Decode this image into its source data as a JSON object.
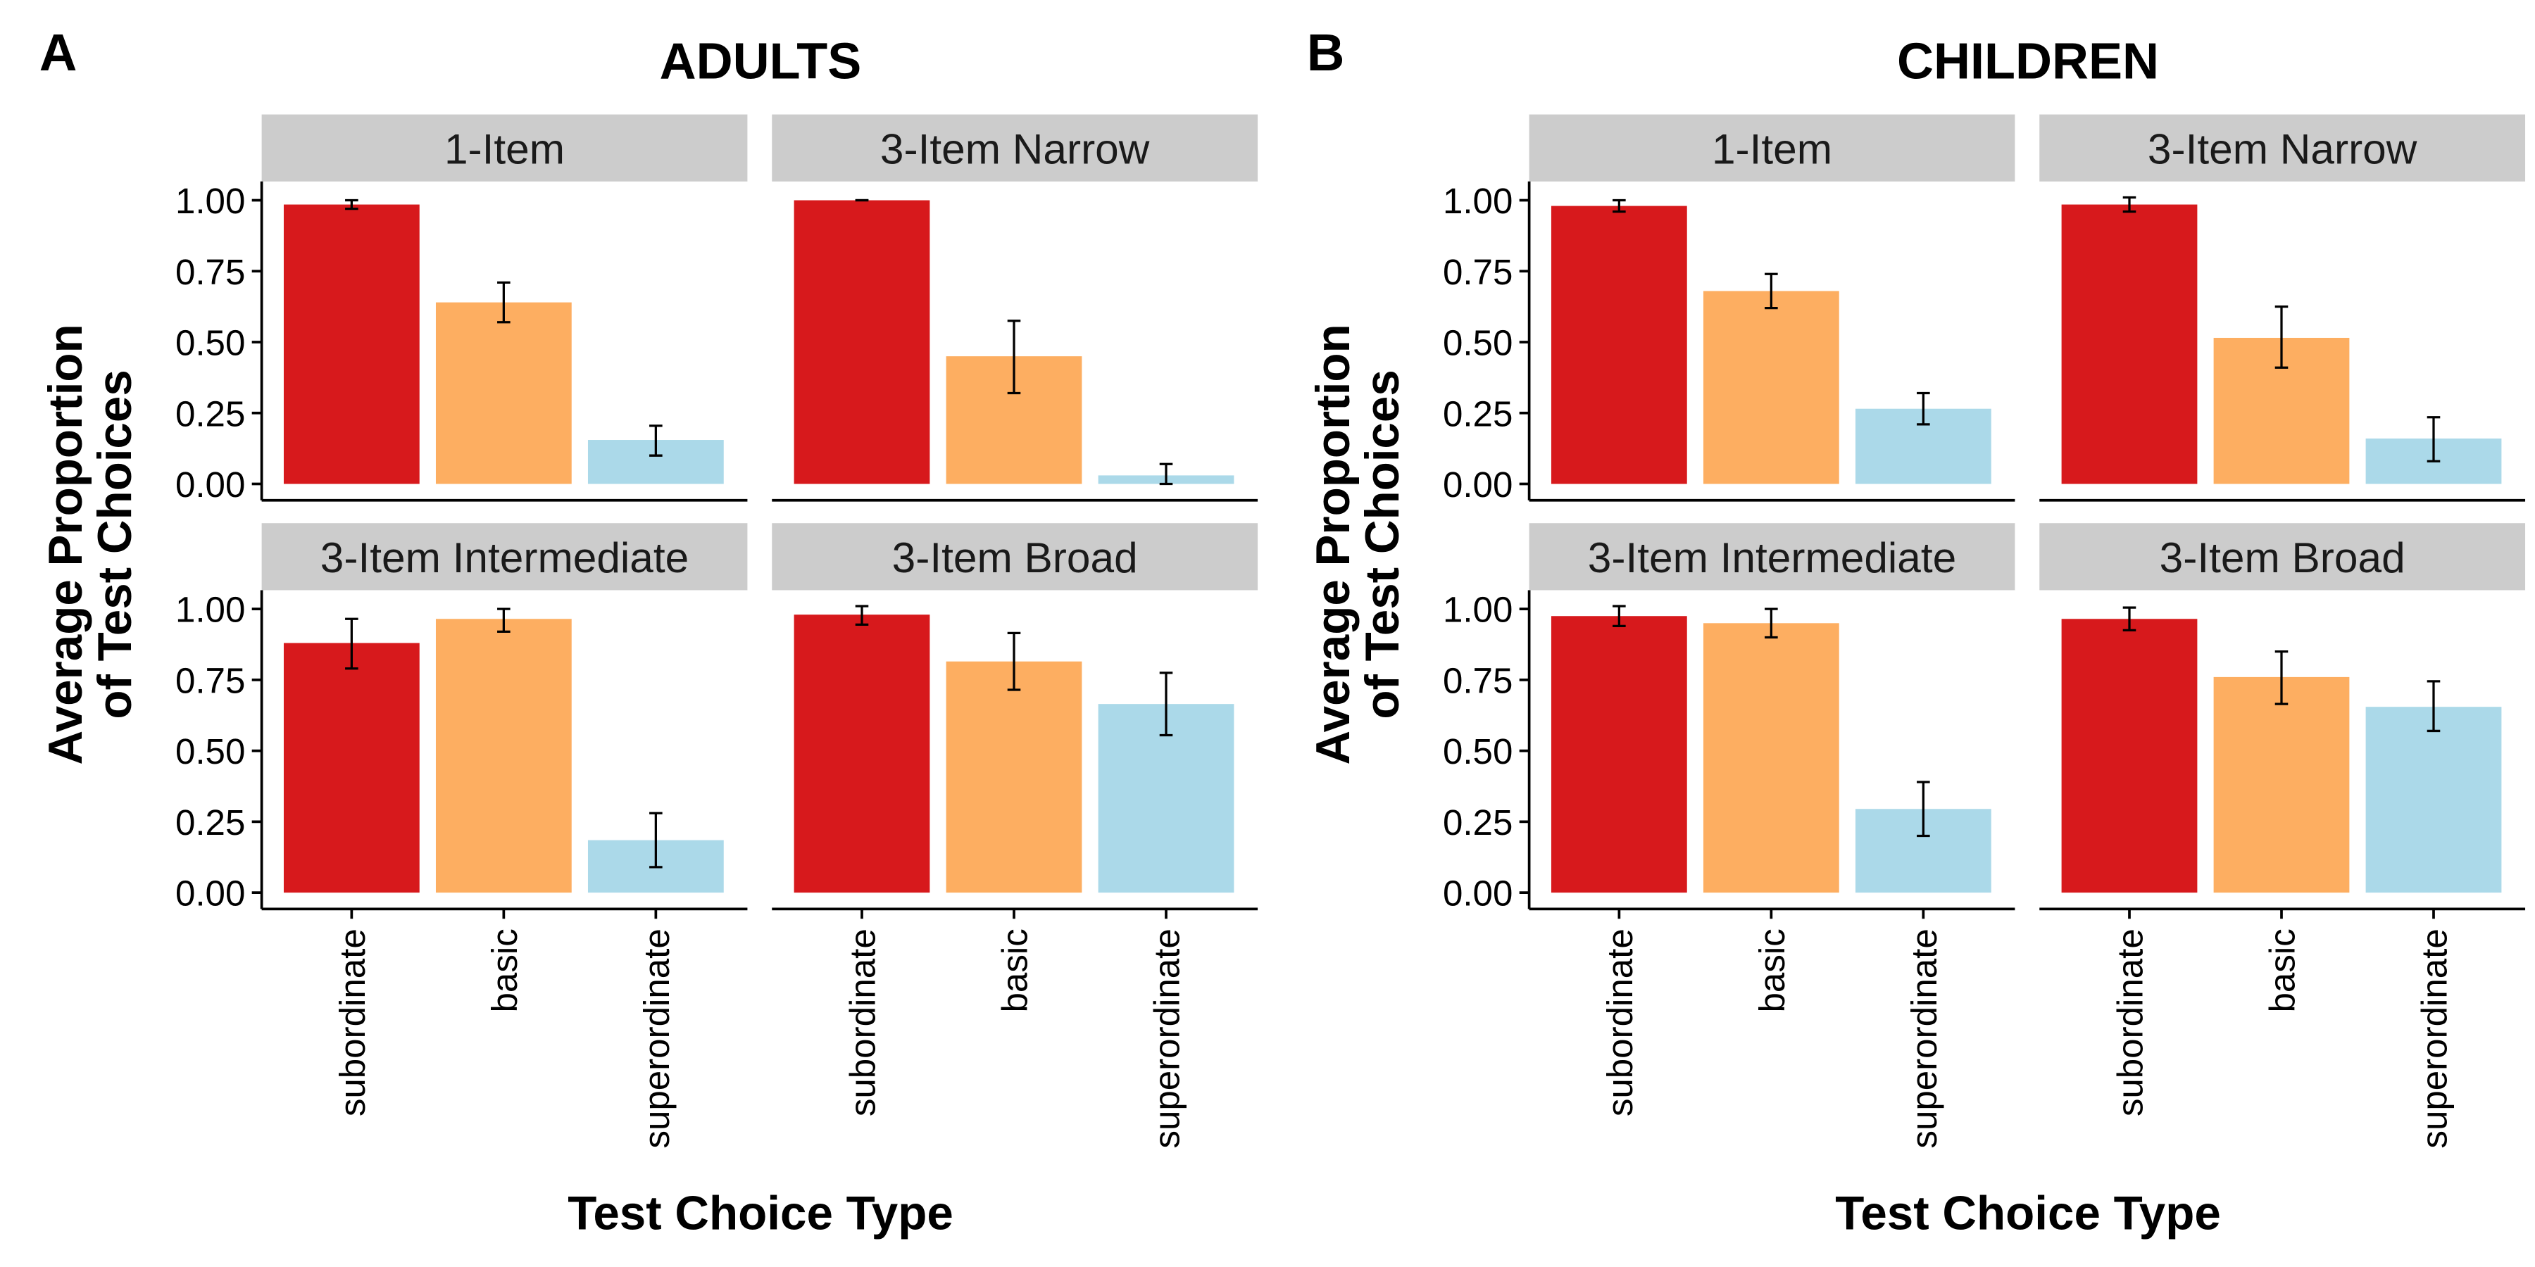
{
  "chart_data": [
    {
      "type": "bar",
      "panel_letter": "A",
      "title": "ADULTS",
      "ylabel": [
        "Average Proportion",
        "of Test Choices"
      ],
      "xlabel": "Test Choice Type",
      "ylim": [
        0,
        1.05
      ],
      "yticks": [
        "0.00",
        "0.25",
        "0.50",
        "0.75",
        "1.00"
      ],
      "categories": [
        "subordinate",
        "basic",
        "superordinate"
      ],
      "colors": [
        "#d7191c",
        "#fdae61",
        "#abd9e9"
      ],
      "legend": "none",
      "grid": false,
      "facets": [
        {
          "name": "1-Item",
          "values": [
            0.985,
            0.64,
            0.155
          ],
          "err_low": [
            0.97,
            0.57,
            0.1
          ],
          "err_high": [
            1.0,
            0.71,
            0.205
          ]
        },
        {
          "name": "3-Item Narrow",
          "values": [
            1.0,
            0.45,
            0.03
          ],
          "err_low": [
            1.0,
            0.32,
            0.0
          ],
          "err_high": [
            1.0,
            0.575,
            0.07
          ]
        },
        {
          "name": "3-Item Intermediate",
          "values": [
            0.88,
            0.965,
            0.185
          ],
          "err_low": [
            0.79,
            0.92,
            0.09
          ],
          "err_high": [
            0.965,
            1.0,
            0.28
          ]
        },
        {
          "name": "3-Item Broad",
          "values": [
            0.98,
            0.815,
            0.665
          ],
          "err_low": [
            0.945,
            0.715,
            0.555
          ],
          "err_high": [
            1.01,
            0.915,
            0.775
          ]
        }
      ]
    },
    {
      "type": "bar",
      "panel_letter": "B",
      "title": "CHILDREN",
      "ylabel": [
        "Average Proportion",
        "of Test Choices"
      ],
      "xlabel": "Test Choice Type",
      "ylim": [
        0,
        1.05
      ],
      "yticks": [
        "0.00",
        "0.25",
        "0.50",
        "0.75",
        "1.00"
      ],
      "categories": [
        "subordinate",
        "basic",
        "superordinate"
      ],
      "colors": [
        "#d7191c",
        "#fdae61",
        "#abd9e9"
      ],
      "legend": "none",
      "grid": false,
      "facets": [
        {
          "name": "1-Item",
          "values": [
            0.98,
            0.68,
            0.265
          ],
          "err_low": [
            0.96,
            0.62,
            0.21
          ],
          "err_high": [
            1.0,
            0.74,
            0.32
          ]
        },
        {
          "name": "3-Item Narrow",
          "values": [
            0.985,
            0.515,
            0.16
          ],
          "err_low": [
            0.96,
            0.41,
            0.08
          ],
          "err_high": [
            1.01,
            0.625,
            0.235
          ]
        },
        {
          "name": "3-Item Intermediate",
          "values": [
            0.975,
            0.95,
            0.295
          ],
          "err_low": [
            0.94,
            0.9,
            0.2
          ],
          "err_high": [
            1.01,
            1.0,
            0.39
          ]
        },
        {
          "name": "3-Item Broad",
          "values": [
            0.965,
            0.76,
            0.655
          ],
          "err_low": [
            0.925,
            0.665,
            0.57
          ],
          "err_high": [
            1.005,
            0.85,
            0.745
          ]
        }
      ]
    }
  ]
}
